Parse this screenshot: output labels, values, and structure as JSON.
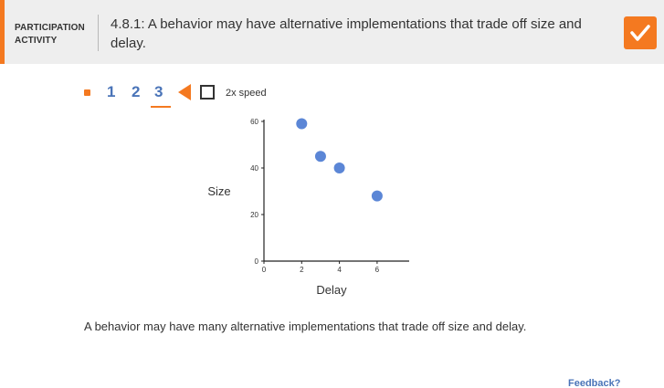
{
  "header": {
    "participation_line1": "PARTICIPATION",
    "participation_line2": "ACTIVITY",
    "title": "4.8.1: A behavior may have alternative implementations that trade off size and delay.",
    "accent_color": "#f47920",
    "badge_icon": "checkmark-icon"
  },
  "controls": {
    "steps": [
      "1",
      "2",
      "3"
    ],
    "current_step": "3",
    "play_icon": "play-left-arrow-icon",
    "speed_label": "2x speed",
    "speed_checked": false,
    "link_color": "#4a74b8"
  },
  "chart_data": {
    "type": "scatter",
    "title": "",
    "xlabel": "Delay",
    "ylabel": "Size",
    "xlim": [
      0,
      7.7
    ],
    "ylim": [
      0,
      60
    ],
    "x_ticks": [
      "0",
      "2",
      "4",
      "6"
    ],
    "y_ticks": [
      "0",
      "20",
      "40",
      "60"
    ],
    "grid": false,
    "point_color": "#5b86d6",
    "points": [
      {
        "x": 2,
        "y": 59
      },
      {
        "x": 3,
        "y": 45
      },
      {
        "x": 4,
        "y": 40
      },
      {
        "x": 6,
        "y": 28
      }
    ]
  },
  "caption": "A behavior may have many alternative implementations that trade off size and delay.",
  "footer": {
    "feedback_label": "Feedback?"
  }
}
